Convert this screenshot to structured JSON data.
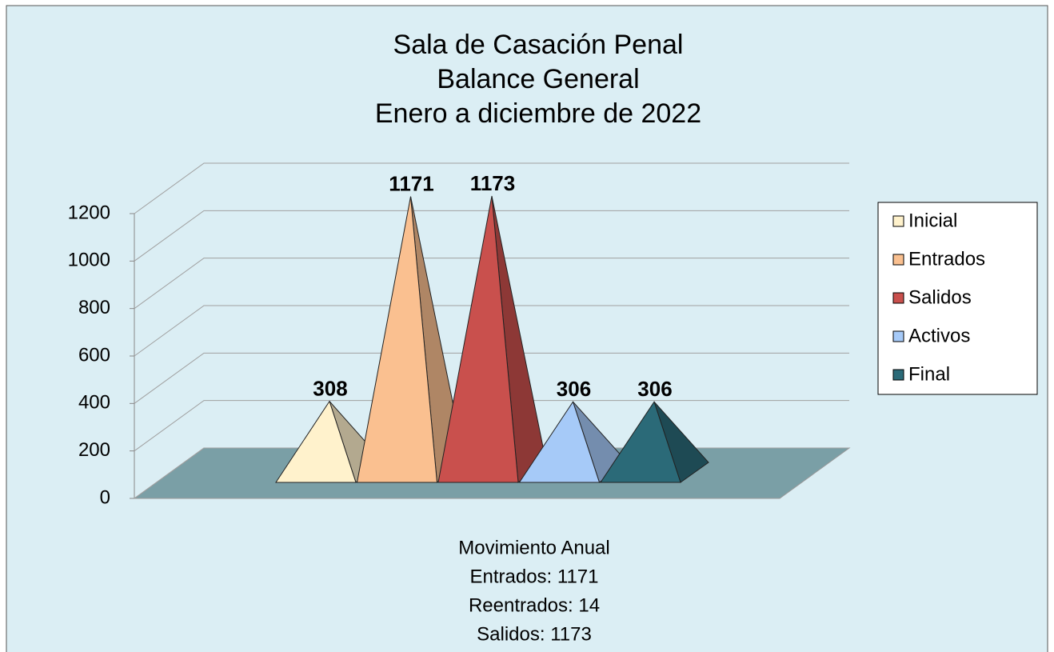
{
  "chart_data": {
    "type": "pyramid3d",
    "title": [
      "Sala de Casación Penal",
      "Balance General",
      "Enero a diciembre de 2022"
    ],
    "series": [
      {
        "name": "Inicial",
        "color": "#fff2cc",
        "values": [
          308
        ]
      },
      {
        "name": "Entrados",
        "color": "#fac090",
        "values": [
          1171
        ]
      },
      {
        "name": "Salidos",
        "color": "#c9504d",
        "values": [
          1173
        ]
      },
      {
        "name": "Activos",
        "color": "#a6caf8",
        "values": [
          306
        ]
      },
      {
        "name": "Final",
        "color": "#2b6a78",
        "values": [
          306
        ]
      }
    ],
    "ylim": [
      0,
      1200
    ],
    "yticks": [
      0,
      200,
      400,
      600,
      800,
      1000,
      1200
    ],
    "grid": true,
    "legend": "right",
    "annotations": [
      "Movimiento Anual",
      "Entrados: 1171",
      "Reentrados: 14",
      "Salidos: 1173"
    ]
  }
}
